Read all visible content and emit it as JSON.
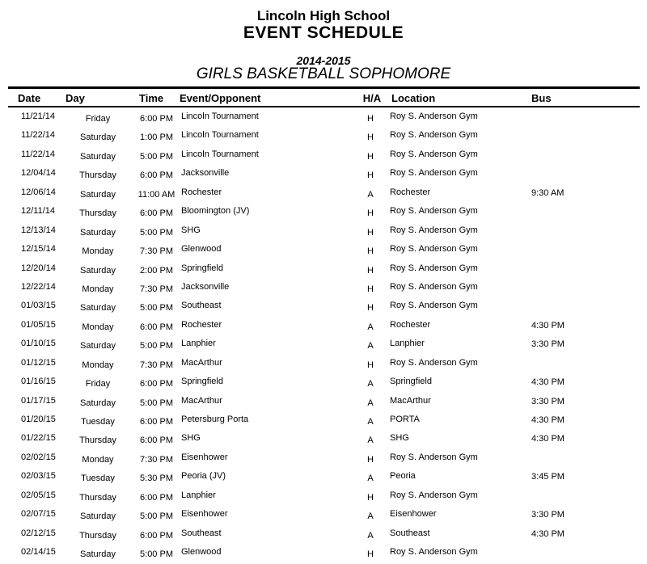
{
  "header": {
    "school": "Lincoln High School",
    "title": "EVENT SCHEDULE",
    "season": "2014-2015",
    "team": "GIRLS BASKETBALL SOPHOMORE"
  },
  "table": {
    "columns": [
      "Date",
      "Day",
      "Time",
      "Event/Opponent",
      "H/A",
      "Location",
      "Bus"
    ],
    "rows": [
      {
        "date": "11/21/14",
        "day": "Friday",
        "time": "6:00 PM",
        "event": "Lincoln Tournament",
        "ha": "H",
        "location": "Roy S. Anderson Gym",
        "bus": ""
      },
      {
        "date": "11/22/14",
        "day": "Saturday",
        "time": "1:00 PM",
        "event": "Lincoln Tournament",
        "ha": "H",
        "location": "Roy S. Anderson Gym",
        "bus": ""
      },
      {
        "date": "11/22/14",
        "day": "Saturday",
        "time": "5:00 PM",
        "event": "Lincoln Tournament",
        "ha": "H",
        "location": "Roy S. Anderson Gym",
        "bus": ""
      },
      {
        "date": "12/04/14",
        "day": "Thursday",
        "time": "6:00 PM",
        "event": "Jacksonville",
        "ha": "H",
        "location": "Roy S. Anderson Gym",
        "bus": ""
      },
      {
        "date": "12/06/14",
        "day": "Saturday",
        "time": "11:00 AM",
        "event": "Rochester",
        "ha": "A",
        "location": "Rochester",
        "bus": "9:30 AM"
      },
      {
        "date": "12/11/14",
        "day": "Thursday",
        "time": "6:00 PM",
        "event": "Bloomington (JV)",
        "ha": "H",
        "location": "Roy S. Anderson Gym",
        "bus": ""
      },
      {
        "date": "12/13/14",
        "day": "Saturday",
        "time": "5:00 PM",
        "event": "SHG",
        "ha": "H",
        "location": "Roy S. Anderson Gym",
        "bus": ""
      },
      {
        "date": "12/15/14",
        "day": "Monday",
        "time": "7:30 PM",
        "event": "Glenwood",
        "ha": "H",
        "location": "Roy S. Anderson Gym",
        "bus": ""
      },
      {
        "date": "12/20/14",
        "day": "Saturday",
        "time": "2:00 PM",
        "event": "Springfield",
        "ha": "H",
        "location": "Roy S. Anderson Gym",
        "bus": ""
      },
      {
        "date": "12/22/14",
        "day": "Monday",
        "time": "7:30 PM",
        "event": "Jacksonville",
        "ha": "H",
        "location": "Roy S. Anderson Gym",
        "bus": ""
      },
      {
        "date": "01/03/15",
        "day": "Saturday",
        "time": "5:00 PM",
        "event": "Southeast",
        "ha": "H",
        "location": "Roy S. Anderson Gym",
        "bus": ""
      },
      {
        "date": "01/05/15",
        "day": "Monday",
        "time": "6:00 PM",
        "event": "Rochester",
        "ha": "A",
        "location": "Rochester",
        "bus": "4:30 PM"
      },
      {
        "date": "01/10/15",
        "day": "Saturday",
        "time": "5:00 PM",
        "event": "Lanphier",
        "ha": "A",
        "location": "Lanphier",
        "bus": "3:30 PM"
      },
      {
        "date": "01/12/15",
        "day": "Monday",
        "time": "7:30 PM",
        "event": "MacArthur",
        "ha": "H",
        "location": "Roy S. Anderson Gym",
        "bus": ""
      },
      {
        "date": "01/16/15",
        "day": "Friday",
        "time": "6:00 PM",
        "event": "Springfield",
        "ha": "A",
        "location": "Springfield",
        "bus": "4:30 PM"
      },
      {
        "date": "01/17/15",
        "day": "Saturday",
        "time": "5:00 PM",
        "event": "MacArthur",
        "ha": "A",
        "location": "MacArthur",
        "bus": "3:30 PM"
      },
      {
        "date": "01/20/15",
        "day": "Tuesday",
        "time": "6:00 PM",
        "event": "Petersburg Porta",
        "ha": "A",
        "location": "PORTA",
        "bus": "4:30 PM"
      },
      {
        "date": "01/22/15",
        "day": "Thursday",
        "time": "6:00 PM",
        "event": "SHG",
        "ha": "A",
        "location": "SHG",
        "bus": "4:30 PM"
      },
      {
        "date": "02/02/15",
        "day": "Monday",
        "time": "7:30 PM",
        "event": "Eisenhower",
        "ha": "H",
        "location": "Roy S. Anderson Gym",
        "bus": ""
      },
      {
        "date": "02/03/15",
        "day": "Tuesday",
        "time": "5:30 PM",
        "event": "Peoria (JV)",
        "ha": "A",
        "location": "Peoria",
        "bus": "3:45 PM"
      },
      {
        "date": "02/05/15",
        "day": "Thursday",
        "time": "6:00 PM",
        "event": "Lanphier",
        "ha": "H",
        "location": "Roy S. Anderson Gym",
        "bus": ""
      },
      {
        "date": "02/07/15",
        "day": "Saturday",
        "time": "5:00 PM",
        "event": "Eisenhower",
        "ha": "A",
        "location": "Eisenhower",
        "bus": "3:30 PM"
      },
      {
        "date": "02/12/15",
        "day": "Thursday",
        "time": "6:00 PM",
        "event": "Southeast",
        "ha": "A",
        "location": "Southeast",
        "bus": "4:30 PM"
      },
      {
        "date": "02/14/15",
        "day": "Saturday",
        "time": "5:00 PM",
        "event": "Glenwood",
        "ha": "H",
        "location": "Roy S. Anderson Gym",
        "bus": ""
      }
    ]
  }
}
